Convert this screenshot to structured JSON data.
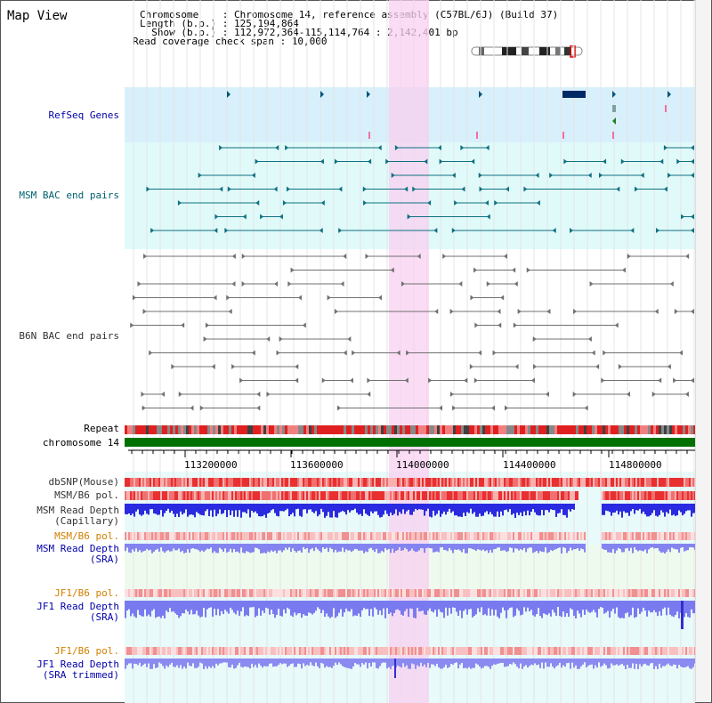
{
  "header": {
    "title": "Map View",
    "chromosome_line": "Chromosome    : Chromosome 14, reference assembly (C57BL/6J) (Build 37)",
    "length_line": "Length (b.p.) : 125,194,864",
    "show_line": "  Show (b.p.) : 112,972,364-115,114,764 : 2,142,401 bp",
    "span_line": "Read coverage check span : 10,000"
  },
  "tracks": {
    "refseq": "RefSeq Genes",
    "msm_bac": "MSM BAC end pairs",
    "b6n_bac": "B6N BAC end pairs",
    "repeat": "Repeat",
    "chromosome": "chromosome 14",
    "dbsnp": "dbSNP(Mouse)",
    "msm_b6_pol": "MSM/B6 pol.",
    "msm_depth_cap_1": "MSM Read Depth",
    "msm_depth_cap_2": "(Capillary)",
    "msm_b6_pol_2": "MSM/B6 pol.",
    "msm_depth_sra_1": "MSM Read Depth",
    "msm_depth_sra_2": "(SRA)",
    "jf1_b6_pol": "JF1/B6 pol.",
    "jf1_depth_sra_1": "JF1 Read Depth",
    "jf1_depth_sra_2": "(SRA)",
    "jf1_b6_pol_2": "JF1/B6 pol.",
    "jf1_depth_trim_1": "JF1 Read Depth",
    "jf1_depth_trim_2": "(SRA trimmed)"
  },
  "axis": {
    "ticks": [
      "113200000",
      "113600000",
      "114000000",
      "114400000",
      "114800000"
    ]
  },
  "colors": {
    "highlight": "#f8d8f4",
    "refseq_bg": "#d8f0fc",
    "bac_bg": "#e0fafa",
    "chromosome_bar": "#007000",
    "msm_depth": "#2020e0",
    "sra_depth": "#8080f0",
    "pol": "#e84040"
  }
}
